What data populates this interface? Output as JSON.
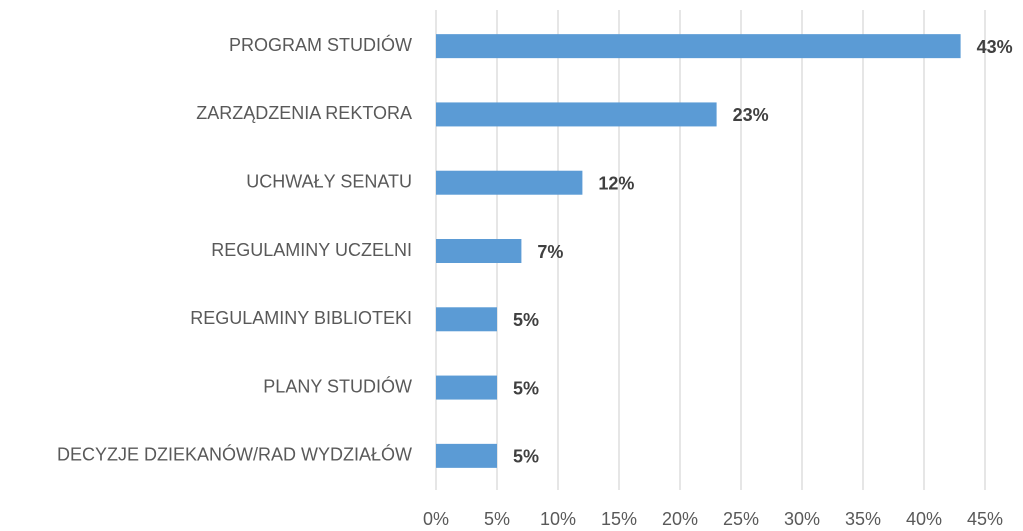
{
  "chart_data": {
    "type": "bar",
    "orientation": "horizontal",
    "categories": [
      "PROGRAM STUDIÓW",
      "ZARZĄDZENIA REKTORA",
      "UCHWAŁY SENATU",
      "REGULAMINY UCZELNI",
      "REGULAMINY BIBLIOTEKI",
      "PLANY STUDIÓW",
      "DECYZJE DZIEKANÓW/RAD WYDZIAŁÓW"
    ],
    "values": [
      43,
      23,
      12,
      7,
      5,
      5,
      5
    ],
    "value_labels": [
      "43%",
      "23%",
      "12%",
      "7%",
      "5%",
      "5%",
      "5%"
    ],
    "color": "#5b9bd5",
    "xlim": [
      0,
      45
    ],
    "xticks": [
      {
        "value": 0,
        "label": "0%"
      },
      {
        "value": 5,
        "label": "5%"
      },
      {
        "value": 10,
        "label": "10%"
      },
      {
        "value": 15,
        "label": "15%"
      },
      {
        "value": 20,
        "label": "20%"
      },
      {
        "value": 25,
        "label": "25%"
      },
      {
        "value": 30,
        "label": "30%"
      },
      {
        "value": 35,
        "label": "35%"
      },
      {
        "value": 40,
        "label": "40%"
      },
      {
        "value": 45,
        "label": "45%"
      }
    ],
    "grid": true
  }
}
